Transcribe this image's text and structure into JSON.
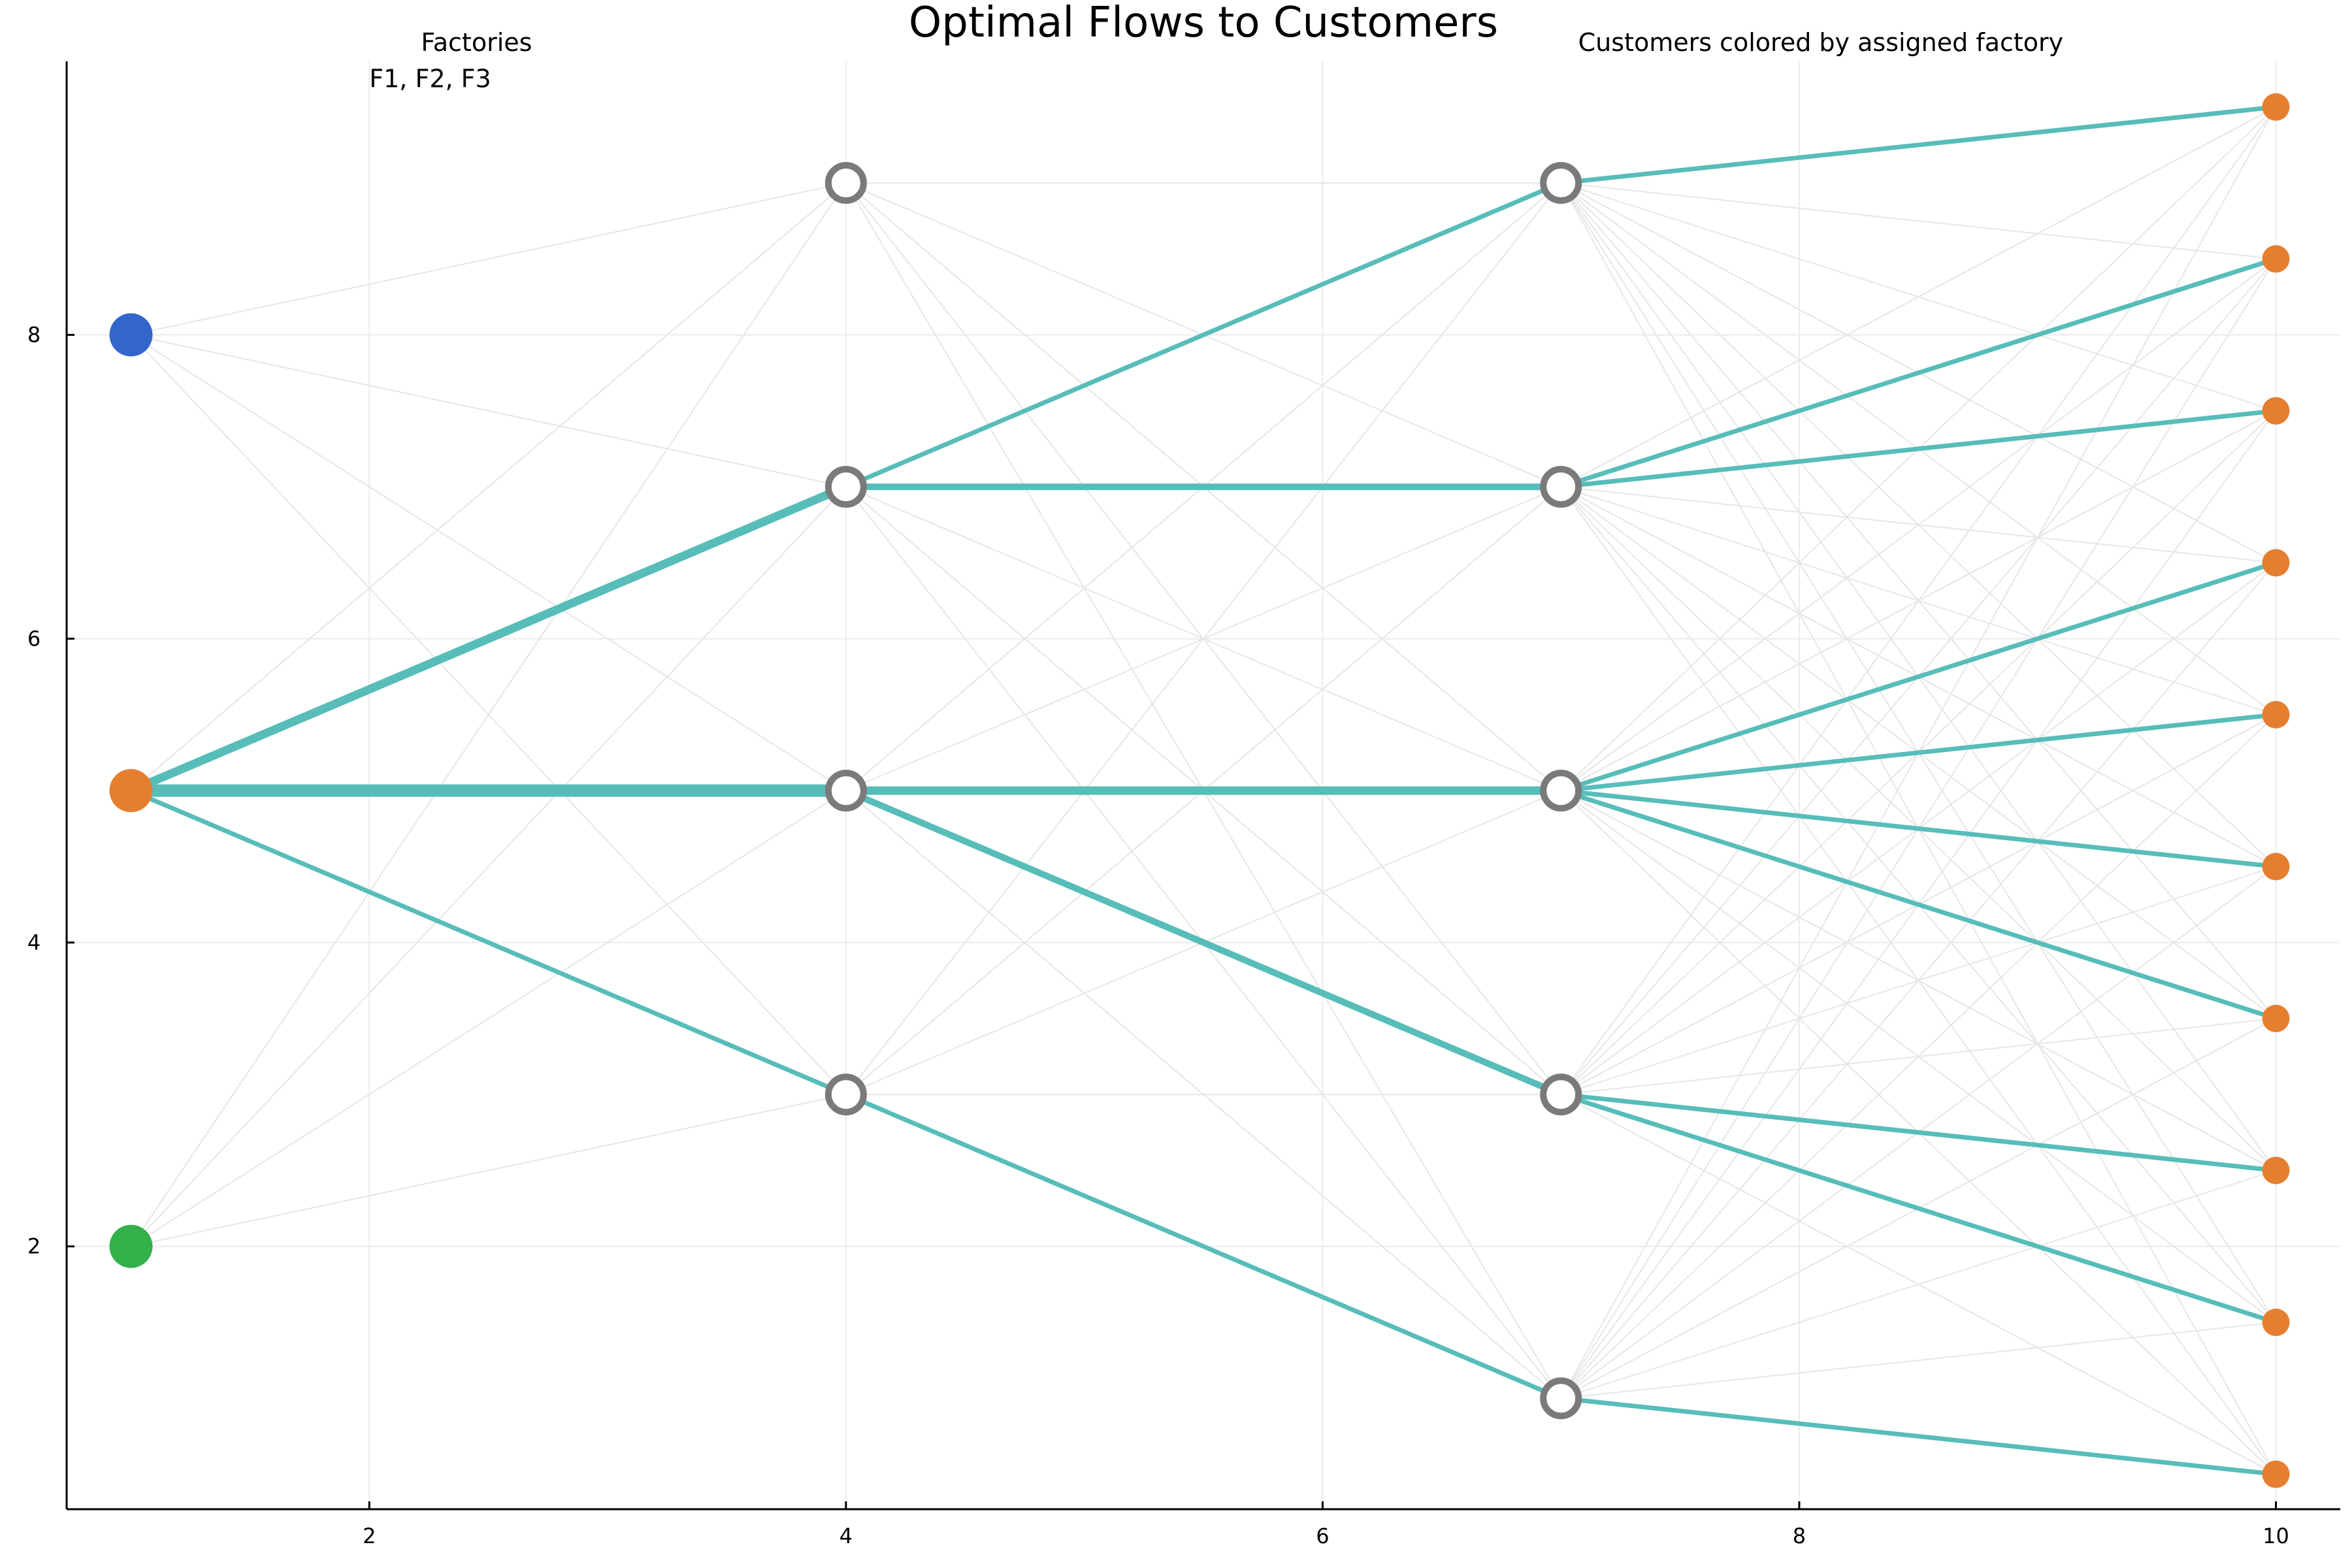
{
  "chart_data": {
    "type": "scatter",
    "title": "Optimal Flows to Customers",
    "annotations": [
      {
        "text": "Factories",
        "x": 2.45,
        "y": 9.92
      },
      {
        "text": "F1, F2, F3",
        "x": 2.45,
        "y": 9.69
      },
      {
        "text": "Customers colored by assigned factory",
        "x": 8.2,
        "y": 9.92
      }
    ],
    "xlim": [
      0.73,
      10.27
    ],
    "ylim": [
      0.27,
      9.8
    ],
    "xticks": [
      2,
      4,
      6,
      8,
      10
    ],
    "yticks": [
      2,
      4,
      6,
      8
    ],
    "grid": true,
    "legend": "none",
    "colors": {
      "flow": "#57bdb9",
      "background_edge": "#e6e6e6",
      "warehouse_stroke": "#7a7a7a",
      "factory_1": "#3366cc",
      "factory_2": "#e67e30",
      "factory_3": "#33b04a",
      "customer": "#e67e30"
    },
    "factories": [
      {
        "name": "F1",
        "x": 1,
        "y": 8,
        "color": "#3366cc"
      },
      {
        "name": "F2",
        "x": 1,
        "y": 5,
        "color": "#e67e30"
      },
      {
        "name": "F3",
        "x": 1,
        "y": 2,
        "color": "#33b04a"
      }
    ],
    "warehouses_stage1": [
      {
        "x": 4,
        "y": 9
      },
      {
        "x": 4,
        "y": 7
      },
      {
        "x": 4,
        "y": 5
      },
      {
        "x": 4,
        "y": 3
      }
    ],
    "warehouses_stage2": [
      {
        "x": 7,
        "y": 9
      },
      {
        "x": 7,
        "y": 7
      },
      {
        "x": 7,
        "y": 5
      },
      {
        "x": 7,
        "y": 3
      },
      {
        "x": 7,
        "y": 1
      }
    ],
    "customers": [
      {
        "x": 10,
        "y": 9.5
      },
      {
        "x": 10,
        "y": 8.5
      },
      {
        "x": 10,
        "y": 7.5
      },
      {
        "x": 10,
        "y": 6.5
      },
      {
        "x": 10,
        "y": 5.5
      },
      {
        "x": 10,
        "y": 4.5
      },
      {
        "x": 10,
        "y": 3.5
      },
      {
        "x": 10,
        "y": 2.5
      },
      {
        "x": 10,
        "y": 1.5
      },
      {
        "x": 10,
        "y": 0.5
      }
    ],
    "flows": [
      {
        "from": [
          1,
          5
        ],
        "to": [
          4,
          7
        ],
        "weight": 3
      },
      {
        "from": [
          1,
          5
        ],
        "to": [
          4,
          5
        ],
        "weight": 5
      },
      {
        "from": [
          1,
          5
        ],
        "to": [
          4,
          3
        ],
        "weight": 1
      },
      {
        "from": [
          4,
          7
        ],
        "to": [
          7,
          9
        ],
        "weight": 1
      },
      {
        "from": [
          4,
          7
        ],
        "to": [
          7,
          7
        ],
        "weight": 2
      },
      {
        "from": [
          4,
          5
        ],
        "to": [
          7,
          5
        ],
        "weight": 3
      },
      {
        "from": [
          4,
          5
        ],
        "to": [
          7,
          3
        ],
        "weight": 2
      },
      {
        "from": [
          4,
          3
        ],
        "to": [
          7,
          1
        ],
        "weight": 1
      },
      {
        "from": [
          7,
          9
        ],
        "to": [
          10,
          9.5
        ],
        "weight": 1
      },
      {
        "from": [
          7,
          7
        ],
        "to": [
          10,
          8.5
        ],
        "weight": 1
      },
      {
        "from": [
          7,
          7
        ],
        "to": [
          10,
          7.5
        ],
        "weight": 1
      },
      {
        "from": [
          7,
          5
        ],
        "to": [
          10,
          6.5
        ],
        "weight": 1
      },
      {
        "from": [
          7,
          5
        ],
        "to": [
          10,
          5.5
        ],
        "weight": 1
      },
      {
        "from": [
          7,
          5
        ],
        "to": [
          10,
          4.5
        ],
        "weight": 1
      },
      {
        "from": [
          7,
          5
        ],
        "to": [
          10,
          3.5
        ],
        "weight": 1
      },
      {
        "from": [
          7,
          3
        ],
        "to": [
          10,
          2.5
        ],
        "weight": 1
      },
      {
        "from": [
          7,
          3
        ],
        "to": [
          10,
          1.5
        ],
        "weight": 1
      },
      {
        "from": [
          7,
          1
        ],
        "to": [
          10,
          0.5
        ],
        "weight": 1
      }
    ]
  }
}
